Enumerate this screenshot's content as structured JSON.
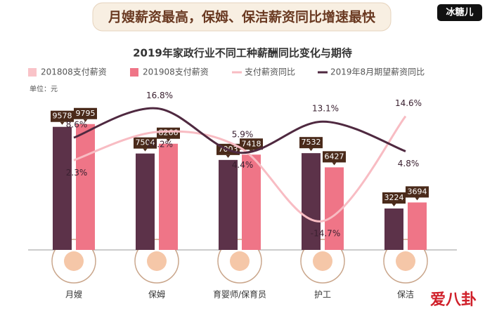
{
  "header": {
    "headline": "月嫂薪资最高，保姆、保洁薪资同比增速最快",
    "watermark_top": "冰糖儿",
    "watermark_bottom": "爱八卦"
  },
  "chart_data": {
    "type": "bar",
    "title": "2019年家政行业不同工种薪酬同比变化与期待",
    "unit_label": "单位：元",
    "categories": [
      "月嫂",
      "保姆",
      "育婴师/保育员",
      "护工",
      "保洁"
    ],
    "ylim": [
      0,
      10000
    ],
    "y2lim": [
      -20,
      20
    ],
    "series": [
      {
        "name": "201808支付薪资",
        "color": "#5c3249",
        "values": [
          9578,
          7504,
          7003,
          7532,
          3224
        ]
      },
      {
        "name": "201908支付薪资",
        "color": "#ef7587",
        "values": [
          9795,
          8266,
          7418,
          6427,
          3694
        ]
      },
      {
        "name": "支付薪资同比",
        "type": "line",
        "axis": "y2",
        "color": "#f8bcc3",
        "values": [
          2.3,
          10.2,
          5.9,
          -14.7,
          14.6
        ],
        "value_labels": [
          "2.3%",
          "10.2%",
          "5.9%",
          "-14.7%",
          "14.6%"
        ]
      },
      {
        "name": "2019年8月期望薪资同比",
        "type": "line",
        "axis": "y2",
        "color": "#4f2940",
        "values": [
          8.6,
          16.8,
          4.4,
          13.1,
          4.8
        ],
        "value_labels": [
          "8.6%",
          "16.8%",
          "4.4%",
          "13.1%",
          "4.8%"
        ]
      }
    ]
  }
}
